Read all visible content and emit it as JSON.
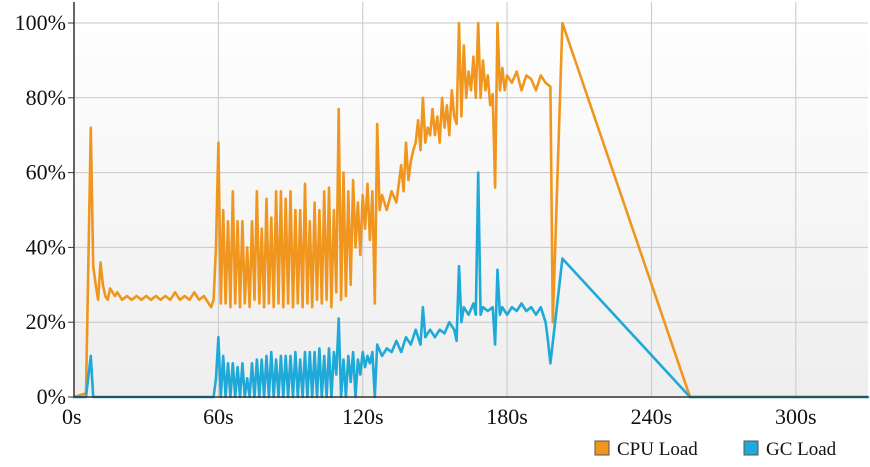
{
  "chart_data": {
    "type": "line",
    "title": "",
    "xlabel": "",
    "ylabel": "",
    "xlim": [
      0,
      330
    ],
    "ylim": [
      0,
      100
    ],
    "x_ticks": [
      0,
      60,
      120,
      180,
      240,
      300
    ],
    "x_tick_labels": [
      "0s",
      "60s",
      "120s",
      "180s",
      "240s",
      "300s"
    ],
    "y_ticks": [
      0,
      20,
      40,
      60,
      80,
      100
    ],
    "y_tick_labels": [
      "0%",
      "20%",
      "40%",
      "60%",
      "80%",
      "100%"
    ],
    "grid": true,
    "background_gradient": [
      "#ffffff",
      "#eeeeee"
    ],
    "legend_position": "bottom-right",
    "series": [
      {
        "name": "CPU Load",
        "color": "#F0961E",
        "points": [
          [
            0,
            0
          ],
          [
            5,
            1
          ],
          [
            7,
            72
          ],
          [
            8,
            35
          ],
          [
            9,
            30
          ],
          [
            10,
            26
          ],
          [
            11,
            36
          ],
          [
            12,
            30
          ],
          [
            13,
            27
          ],
          [
            14,
            26
          ],
          [
            15,
            29
          ],
          [
            17,
            27
          ],
          [
            18,
            28
          ],
          [
            20,
            26
          ],
          [
            22,
            27
          ],
          [
            24,
            26
          ],
          [
            26,
            27
          ],
          [
            28,
            26
          ],
          [
            30,
            27
          ],
          [
            32,
            26
          ],
          [
            34,
            27
          ],
          [
            36,
            26
          ],
          [
            38,
            27
          ],
          [
            40,
            26
          ],
          [
            42,
            28
          ],
          [
            44,
            26
          ],
          [
            46,
            27
          ],
          [
            48,
            26
          ],
          [
            50,
            28
          ],
          [
            52,
            26
          ],
          [
            54,
            27
          ],
          [
            56,
            25
          ],
          [
            57,
            24
          ],
          [
            58,
            26
          ],
          [
            59,
            40
          ],
          [
            60,
            68
          ],
          [
            61,
            25
          ],
          [
            62,
            50
          ],
          [
            63,
            25
          ],
          [
            64,
            47
          ],
          [
            65,
            24
          ],
          [
            66,
            55
          ],
          [
            67,
            25
          ],
          [
            68,
            47
          ],
          [
            69,
            24
          ],
          [
            70,
            47
          ],
          [
            71,
            25
          ],
          [
            72,
            40
          ],
          [
            73,
            24
          ],
          [
            74,
            47
          ],
          [
            75,
            26
          ],
          [
            76,
            55
          ],
          [
            77,
            25
          ],
          [
            78,
            45
          ],
          [
            79,
            24
          ],
          [
            80,
            53
          ],
          [
            81,
            25
          ],
          [
            82,
            48
          ],
          [
            83,
            24
          ],
          [
            84,
            55
          ],
          [
            85,
            25
          ],
          [
            86,
            55
          ],
          [
            87,
            24
          ],
          [
            88,
            53
          ],
          [
            89,
            25
          ],
          [
            90,
            55
          ],
          [
            91,
            24
          ],
          [
            92,
            50
          ],
          [
            93,
            25
          ],
          [
            94,
            50
          ],
          [
            95,
            24
          ],
          [
            96,
            57
          ],
          [
            97,
            25
          ],
          [
            98,
            47
          ],
          [
            99,
            24
          ],
          [
            100,
            52
          ],
          [
            101,
            26
          ],
          [
            102,
            50
          ],
          [
            103,
            25
          ],
          [
            104,
            55
          ],
          [
            105,
            26
          ],
          [
            106,
            56
          ],
          [
            107,
            24
          ],
          [
            108,
            50
          ],
          [
            109,
            28
          ],
          [
            110,
            77
          ],
          [
            111,
            26
          ],
          [
            112,
            60
          ],
          [
            113,
            27
          ],
          [
            114,
            55
          ],
          [
            115,
            30
          ],
          [
            116,
            58
          ],
          [
            117,
            40
          ],
          [
            118,
            52
          ],
          [
            119,
            38
          ],
          [
            120,
            54
          ],
          [
            121,
            45
          ],
          [
            122,
            57
          ],
          [
            123,
            42
          ],
          [
            124,
            55
          ],
          [
            125,
            25
          ],
          [
            126,
            73
          ],
          [
            127,
            50
          ],
          [
            128,
            54
          ],
          [
            130,
            50
          ],
          [
            132,
            55
          ],
          [
            134,
            52
          ],
          [
            136,
            62
          ],
          [
            137,
            55
          ],
          [
            138,
            68
          ],
          [
            139,
            58
          ],
          [
            140,
            63
          ],
          [
            141,
            66
          ],
          [
            142,
            68
          ],
          [
            143,
            74
          ],
          [
            144,
            66
          ],
          [
            145,
            80
          ],
          [
            146,
            68
          ],
          [
            147,
            72
          ],
          [
            148,
            70
          ],
          [
            149,
            77
          ],
          [
            150,
            70
          ],
          [
            151,
            75
          ],
          [
            152,
            68
          ],
          [
            153,
            80
          ],
          [
            154,
            72
          ],
          [
            155,
            78
          ],
          [
            156,
            70
          ],
          [
            157,
            82
          ],
          [
            158,
            75
          ],
          [
            159,
            73
          ],
          [
            160,
            100
          ],
          [
            161,
            75
          ],
          [
            162,
            94
          ],
          [
            163,
            80
          ],
          [
            164,
            87
          ],
          [
            165,
            82
          ],
          [
            166,
            91
          ],
          [
            167,
            80
          ],
          [
            168,
            100
          ],
          [
            169,
            80
          ],
          [
            170,
            90
          ],
          [
            171,
            82
          ],
          [
            172,
            86
          ],
          [
            173,
            78
          ],
          [
            174,
            81
          ],
          [
            175,
            56
          ],
          [
            176,
            100
          ],
          [
            177,
            82
          ],
          [
            178,
            88
          ],
          [
            179,
            82
          ],
          [
            180,
            86
          ],
          [
            182,
            84
          ],
          [
            184,
            87
          ],
          [
            186,
            82
          ],
          [
            188,
            86
          ],
          [
            190,
            85
          ],
          [
            192,
            82
          ],
          [
            194,
            86
          ],
          [
            196,
            84
          ],
          [
            198,
            83
          ],
          [
            199,
            20
          ],
          [
            203,
            100
          ],
          [
            256,
            0
          ],
          [
            330,
            0
          ]
        ]
      },
      {
        "name": "GC Load",
        "color": "#1EA9D8",
        "points": [
          [
            0,
            0
          ],
          [
            5,
            0
          ],
          [
            7,
            11
          ],
          [
            8,
            0
          ],
          [
            30,
            0
          ],
          [
            40,
            0
          ],
          [
            50,
            0
          ],
          [
            57,
            0
          ],
          [
            58,
            0
          ],
          [
            59,
            5
          ],
          [
            60,
            16
          ],
          [
            61,
            0
          ],
          [
            62,
            11
          ],
          [
            63,
            0
          ],
          [
            64,
            9
          ],
          [
            65,
            0
          ],
          [
            66,
            9
          ],
          [
            67,
            0
          ],
          [
            68,
            8
          ],
          [
            69,
            0
          ],
          [
            70,
            9
          ],
          [
            71,
            0
          ],
          [
            72,
            5
          ],
          [
            73,
            0
          ],
          [
            74,
            9
          ],
          [
            75,
            0
          ],
          [
            76,
            10
          ],
          [
            77,
            0
          ],
          [
            78,
            10
          ],
          [
            79,
            0
          ],
          [
            80,
            11
          ],
          [
            81,
            0
          ],
          [
            82,
            12
          ],
          [
            83,
            0
          ],
          [
            84,
            10
          ],
          [
            85,
            0
          ],
          [
            86,
            11
          ],
          [
            87,
            0
          ],
          [
            88,
            11
          ],
          [
            89,
            0
          ],
          [
            90,
            11
          ],
          [
            91,
            0
          ],
          [
            92,
            12
          ],
          [
            93,
            0
          ],
          [
            94,
            10
          ],
          [
            95,
            0
          ],
          [
            96,
            12
          ],
          [
            97,
            0
          ],
          [
            98,
            12
          ],
          [
            99,
            0
          ],
          [
            100,
            12
          ],
          [
            101,
            0
          ],
          [
            102,
            13
          ],
          [
            103,
            0
          ],
          [
            104,
            11
          ],
          [
            105,
            0
          ],
          [
            106,
            13
          ],
          [
            107,
            0
          ],
          [
            108,
            12
          ],
          [
            109,
            6
          ],
          [
            110,
            21
          ],
          [
            111,
            0
          ],
          [
            112,
            10
          ],
          [
            113,
            0
          ],
          [
            114,
            11
          ],
          [
            115,
            4
          ],
          [
            116,
            12
          ],
          [
            117,
            0
          ],
          [
            118,
            10
          ],
          [
            119,
            6
          ],
          [
            120,
            12
          ],
          [
            121,
            8
          ],
          [
            122,
            11
          ],
          [
            123,
            9
          ],
          [
            124,
            12
          ],
          [
            125,
            0
          ],
          [
            126,
            14
          ],
          [
            128,
            11
          ],
          [
            130,
            13
          ],
          [
            132,
            12
          ],
          [
            134,
            15
          ],
          [
            136,
            12
          ],
          [
            138,
            16
          ],
          [
            140,
            14
          ],
          [
            142,
            18
          ],
          [
            144,
            14
          ],
          [
            145,
            24
          ],
          [
            146,
            16
          ],
          [
            148,
            18
          ],
          [
            150,
            16
          ],
          [
            152,
            18
          ],
          [
            154,
            17
          ],
          [
            156,
            20
          ],
          [
            158,
            18
          ],
          [
            159,
            15
          ],
          [
            160,
            35
          ],
          [
            161,
            20
          ],
          [
            162,
            24
          ],
          [
            164,
            22
          ],
          [
            166,
            25
          ],
          [
            167,
            22
          ],
          [
            168,
            60
          ],
          [
            169,
            22
          ],
          [
            170,
            24
          ],
          [
            172,
            23
          ],
          [
            174,
            24
          ],
          [
            175,
            14
          ],
          [
            176,
            34
          ],
          [
            177,
            22
          ],
          [
            178,
            24
          ],
          [
            180,
            22
          ],
          [
            182,
            24
          ],
          [
            184,
            23
          ],
          [
            186,
            25
          ],
          [
            188,
            23
          ],
          [
            190,
            24
          ],
          [
            192,
            22
          ],
          [
            194,
            24
          ],
          [
            196,
            20
          ],
          [
            197,
            15
          ],
          [
            198,
            9
          ],
          [
            203,
            37
          ],
          [
            256,
            0
          ],
          [
            330,
            0
          ]
        ]
      }
    ]
  }
}
